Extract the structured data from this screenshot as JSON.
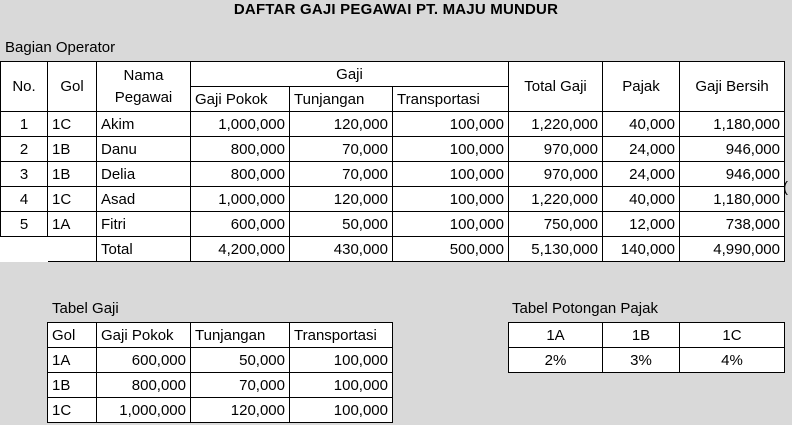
{
  "title": "DAFTAR GAJI PEGAWAI PT. MAJU MUNDUR",
  "section_label": "Bagian Operator",
  "main_table": {
    "headers": {
      "no": "No.",
      "gol": "Gol",
      "nama_line1": "Nama",
      "nama_line2": "Pegawai",
      "gaji": "Gaji",
      "gaji_pokok": "Gaji Pokok",
      "tunjangan": "Tunjangan",
      "transportasi": "Transportasi",
      "total_gaji": "Total Gaji",
      "pajak": "Pajak",
      "gaji_bersih": "Gaji Bersih"
    },
    "rows": [
      {
        "no": "1",
        "gol": "1C",
        "nama": "Akim",
        "pokok": "1,000,000",
        "tunjangan": "120,000",
        "transport": "100,000",
        "total": "1,220,000",
        "pajak": "40,000",
        "bersih": "1,180,000"
      },
      {
        "no": "2",
        "gol": "1B",
        "nama": "Danu",
        "pokok": "800,000",
        "tunjangan": "70,000",
        "transport": "100,000",
        "total": "970,000",
        "pajak": "24,000",
        "bersih": "946,000"
      },
      {
        "no": "3",
        "gol": "1B",
        "nama": "Delia",
        "pokok": "800,000",
        "tunjangan": "70,000",
        "transport": "100,000",
        "total": "970,000",
        "pajak": "24,000",
        "bersih": "946,000"
      },
      {
        "no": "4",
        "gol": "1C",
        "nama": "Asad",
        "pokok": "1,000,000",
        "tunjangan": "120,000",
        "transport": "100,000",
        "total": "1,220,000",
        "pajak": "40,000",
        "bersih": "1,180,000"
      },
      {
        "no": "5",
        "gol": "1A",
        "nama": "Fitri",
        "pokok": "600,000",
        "tunjangan": "50,000",
        "transport": "100,000",
        "total": "750,000",
        "pajak": "12,000",
        "bersih": "738,000"
      }
    ],
    "total_row": {
      "label": "Total",
      "pokok": "4,200,000",
      "tunjangan": "430,000",
      "transport": "500,000",
      "total": "5,130,000",
      "pajak": "140,000",
      "bersih": "4,990,000"
    },
    "clipped_char": "("
  },
  "tabel_gaji": {
    "label": "Tabel Gaji",
    "headers": [
      "Gol",
      "Gaji Pokok",
      "Tunjangan",
      "Transportasi"
    ],
    "rows": [
      [
        "1A",
        "600,000",
        "50,000",
        "100,000"
      ],
      [
        "1B",
        "800,000",
        "70,000",
        "100,000"
      ],
      [
        "1C",
        "1,000,000",
        "120,000",
        "100,000"
      ]
    ]
  },
  "tabel_pajak": {
    "label": "Tabel Potongan Pajak",
    "headers": [
      "1A",
      "1B",
      "1C"
    ],
    "values": [
      "2%",
      "3%",
      "4%"
    ]
  }
}
